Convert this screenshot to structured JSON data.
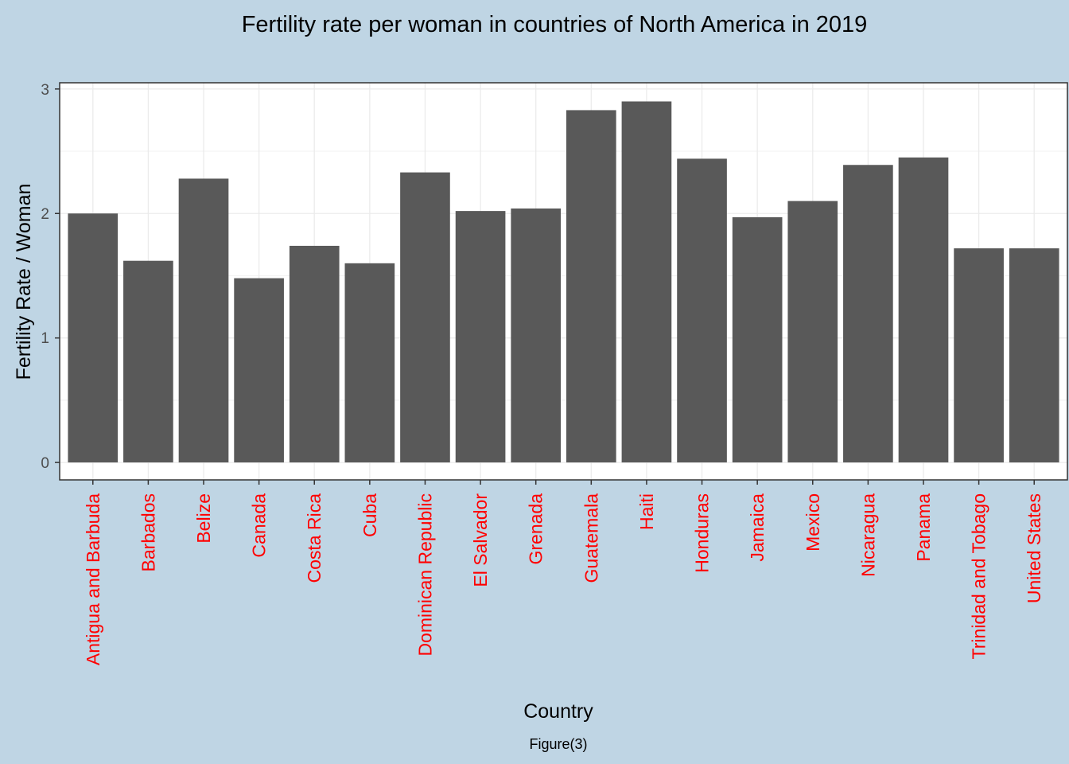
{
  "chart_data": {
    "type": "bar",
    "title": "Fertility rate per woman in countries of North America in 2019",
    "xlabel": "Country",
    "ylabel": "Fertility Rate / Woman",
    "caption": "Figure(3)",
    "categories": [
      "Antigua and Barbuda",
      "Barbados",
      "Belize",
      "Canada",
      "Costa Rica",
      "Cuba",
      "Dominican Republic",
      "El Salvador",
      "Grenada",
      "Guatemala",
      "Haiti",
      "Honduras",
      "Jamaica",
      "Mexico",
      "Nicaragua",
      "Panama",
      "Trinidad and Tobago",
      "United States"
    ],
    "values": [
      2.0,
      1.62,
      2.28,
      1.48,
      1.74,
      1.6,
      2.33,
      2.02,
      2.04,
      2.83,
      2.9,
      2.44,
      1.97,
      2.1,
      2.39,
      2.45,
      1.72,
      1.72
    ],
    "ylim": [
      -0.14,
      3.05
    ],
    "yticks": [
      "0",
      "1",
      "2",
      "3"
    ],
    "grid": true,
    "legend": "none",
    "colors": {
      "background": "#bfd5e4",
      "panel": "#ffffff",
      "bar": "#595959",
      "grid": "#ebebeb",
      "tick_label_x": "#ff0000",
      "tick_label_y": "#4d4d4d"
    }
  }
}
